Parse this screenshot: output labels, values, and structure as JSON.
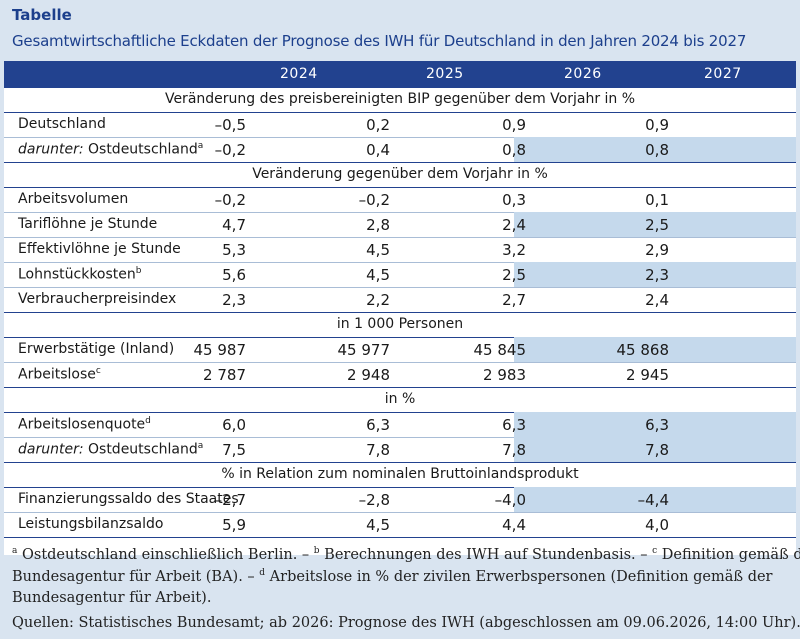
{
  "heading": "Tabelle",
  "subtitle": "Gesamtwirtschaftliche Eckdaten der Prognose des IWH für Deutschland in den Jahren 2024 bis 2027",
  "years": [
    "2024",
    "2025",
    "2026",
    "2027"
  ],
  "sections": [
    {
      "title": "Veränderung des preisbereinigten BIP gegenüber dem Vorjahr in %",
      "rows": [
        {
          "prefix": "",
          "label": "Deutschland",
          "note": "",
          "values": [
            "–0,5",
            "0,2",
            "0,9",
            "0,9"
          ]
        },
        {
          "prefix": "darunter:",
          "label": "Ostdeutschland",
          "note": "a",
          "values": [
            "–0,2",
            "0,4",
            "0,8",
            "0,8"
          ]
        }
      ]
    },
    {
      "title": "Veränderung gegenüber dem Vorjahr in %",
      "rows": [
        {
          "prefix": "",
          "label": "Arbeitsvolumen",
          "note": "",
          "values": [
            "–0,2",
            "–0,2",
            "0,3",
            "0,1"
          ]
        },
        {
          "prefix": "",
          "label": "Tariflöhne je Stunde",
          "note": "",
          "values": [
            "4,7",
            "2,8",
            "2,4",
            "2,5"
          ]
        },
        {
          "prefix": "",
          "label": "Effektivlöhne je Stunde",
          "note": "",
          "values": [
            "5,3",
            "4,5",
            "3,2",
            "2,9"
          ]
        },
        {
          "prefix": "",
          "label": "Lohnstückkosten",
          "note": "b",
          "values": [
            "5,6",
            "4,5",
            "2,5",
            "2,3"
          ]
        },
        {
          "prefix": "",
          "label": "Verbraucherpreisindex",
          "note": "",
          "values": [
            "2,3",
            "2,2",
            "2,7",
            "2,4"
          ]
        }
      ]
    },
    {
      "title": "in 1 000 Personen",
      "rows": [
        {
          "prefix": "",
          "label": "Erwerbstätige (Inland)",
          "note": "",
          "values": [
            "45 987",
            "45 977",
            "45 845",
            "45 868"
          ]
        },
        {
          "prefix": "",
          "label": "Arbeitslose",
          "note": "c",
          "values": [
            "2 787",
            "2 948",
            "2 983",
            "2 945"
          ]
        }
      ]
    },
    {
      "title": "in %",
      "rows": [
        {
          "prefix": "",
          "label": "Arbeitslosenquote",
          "note": "d",
          "values": [
            "6,0",
            "6,3",
            "6,3",
            "6,3"
          ]
        },
        {
          "prefix": "darunter:",
          "label": "Ostdeutschland",
          "note": "a",
          "values": [
            "7,5",
            "7,8",
            "7,8",
            "7,8"
          ]
        }
      ]
    },
    {
      "title": "% in Relation zum nominalen Bruttoinlandsprodukt",
      "rows": [
        {
          "prefix": "",
          "label": "Finanzierungssaldo des Staates",
          "note": "",
          "values": [
            "–2,7",
            "–2,8",
            "–4,0",
            "–4,4"
          ]
        },
        {
          "prefix": "",
          "label": "Leistungsbilanzsaldo",
          "note": "",
          "values": [
            "5,9",
            "4,5",
            "4,4",
            "4,0"
          ]
        }
      ]
    }
  ],
  "footnotes": [
    {
      "mark": "a",
      "text": "Ostdeutschland einschließlich Berlin. – "
    },
    {
      "mark": "b",
      "text": "Berechnungen des IWH auf Stundenbasis. – "
    },
    {
      "mark": "c",
      "text": "Definition gemäß der Bundesagentur für Arbeit (BA). – "
    },
    {
      "mark": "d",
      "text": "Arbeitslose in % der zivilen Erwerbspersonen (Definition gemäß der Bundesagentur für Arbeit)."
    }
  ],
  "source": "Quellen: Statistisches Bundesamt; ab 2026: Prognose des IWH (abgeschlossen am 09.06.2026, 14:00 Uhr).",
  "colors": {
    "header": "#22428f",
    "forecast_highlight": "#c5d9ec",
    "background": "#d9e4f0",
    "title": "#1c3f8c"
  }
}
